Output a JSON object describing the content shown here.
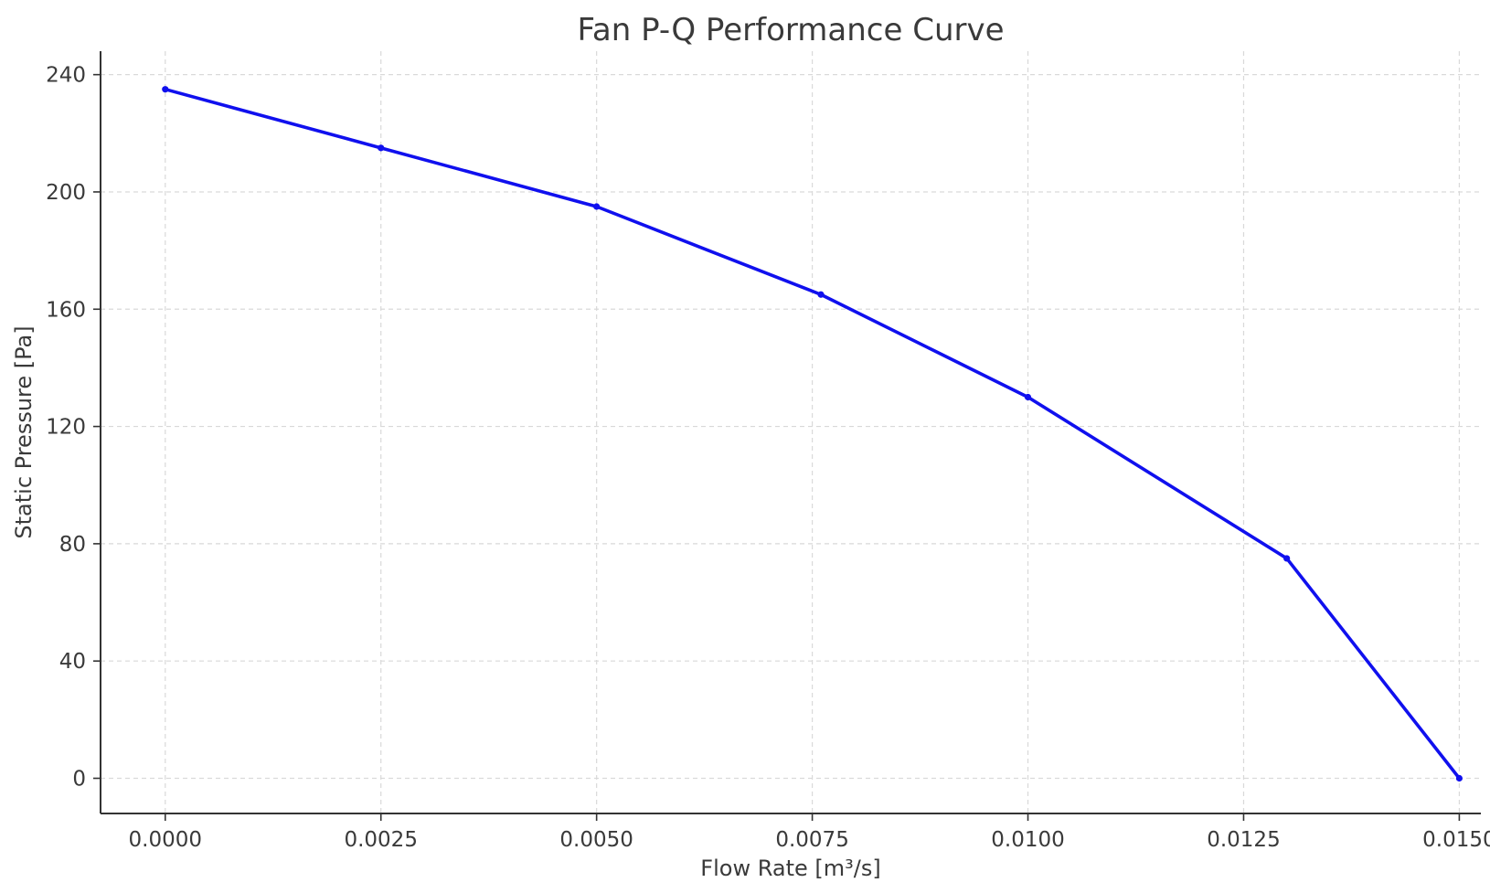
{
  "chart_data": {
    "type": "line",
    "title": "Fan P-Q Performance Curve",
    "xlabel": "Flow Rate [m³/s]",
    "ylabel": "Static Pressure [Pa]",
    "xlim": [
      -0.00075,
      0.01525
    ],
    "ylim": [
      -12,
      248
    ],
    "xticks": [
      0.0,
      0.0025,
      0.005,
      0.0075,
      0.01,
      0.0125,
      0.015
    ],
    "xtick_labels": [
      "0.0000",
      "0.0025",
      "0.0050",
      "0.0075",
      "0.0100",
      "0.0125",
      "0.0150"
    ],
    "yticks": [
      0,
      40,
      80,
      120,
      160,
      200,
      240
    ],
    "ytick_labels": [
      "0",
      "40",
      "80",
      "120",
      "160",
      "200",
      "240"
    ],
    "grid": true,
    "legend": "none",
    "series": [
      {
        "color": "#1010ee",
        "x": [
          0.0,
          0.0025,
          0.005,
          0.0076,
          0.01,
          0.013,
          0.015
        ],
        "y": [
          235,
          215,
          195,
          165,
          130,
          75,
          0
        ]
      }
    ]
  }
}
